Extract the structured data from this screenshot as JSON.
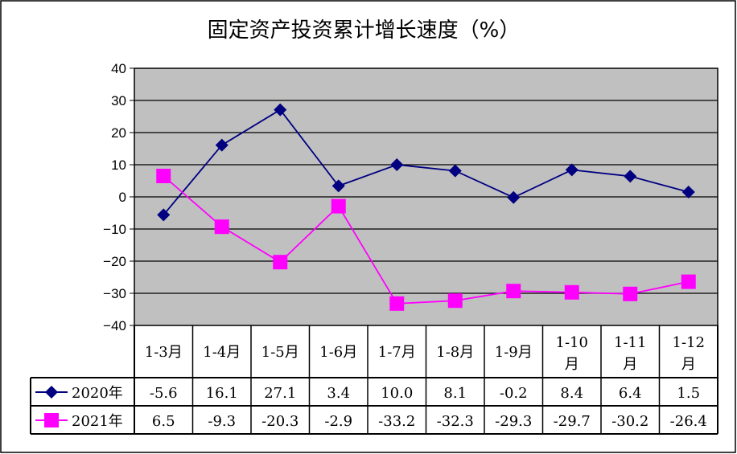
{
  "chart_data": {
    "type": "line",
    "title": "固定资产投资累计增长速度（%）",
    "categories": [
      "1-3月",
      "1-4月",
      "1-5月",
      "1-6月",
      "1-7月",
      "1-8月",
      "1-9月",
      "1-10月",
      "1-11月",
      "1-12月"
    ],
    "series": [
      {
        "name": "2020年",
        "color": "#000080",
        "marker": "diamond",
        "values": [
          -5.6,
          16.1,
          27.1,
          3.4,
          10.0,
          8.1,
          -0.2,
          8.4,
          6.4,
          1.5
        ],
        "labels": [
          "-5.6",
          "16.1",
          "27.1",
          "3.4",
          "10.0",
          "8.1",
          "-0.2",
          "8.4",
          "6.4",
          "1.5"
        ]
      },
      {
        "name": "2021年",
        "color": "#FF00FF",
        "marker": "square",
        "values": [
          6.5,
          -9.3,
          -20.3,
          -2.9,
          -33.2,
          -32.3,
          -29.3,
          -29.7,
          -30.2,
          -26.4
        ],
        "labels": [
          "6.5",
          "-9.3",
          "-20.3",
          "-2.9",
          "-33.2",
          "-32.3",
          "-29.3",
          "-29.7",
          "-30.2",
          "-26.4"
        ]
      }
    ],
    "ylim": [
      -40,
      40
    ],
    "yticks": [
      "40",
      "30",
      "20",
      "10",
      "0",
      "-10",
      "-20",
      "-30",
      "-40"
    ],
    "grid": true,
    "plot_background": "#C0C0C0",
    "legend": "data-table"
  }
}
